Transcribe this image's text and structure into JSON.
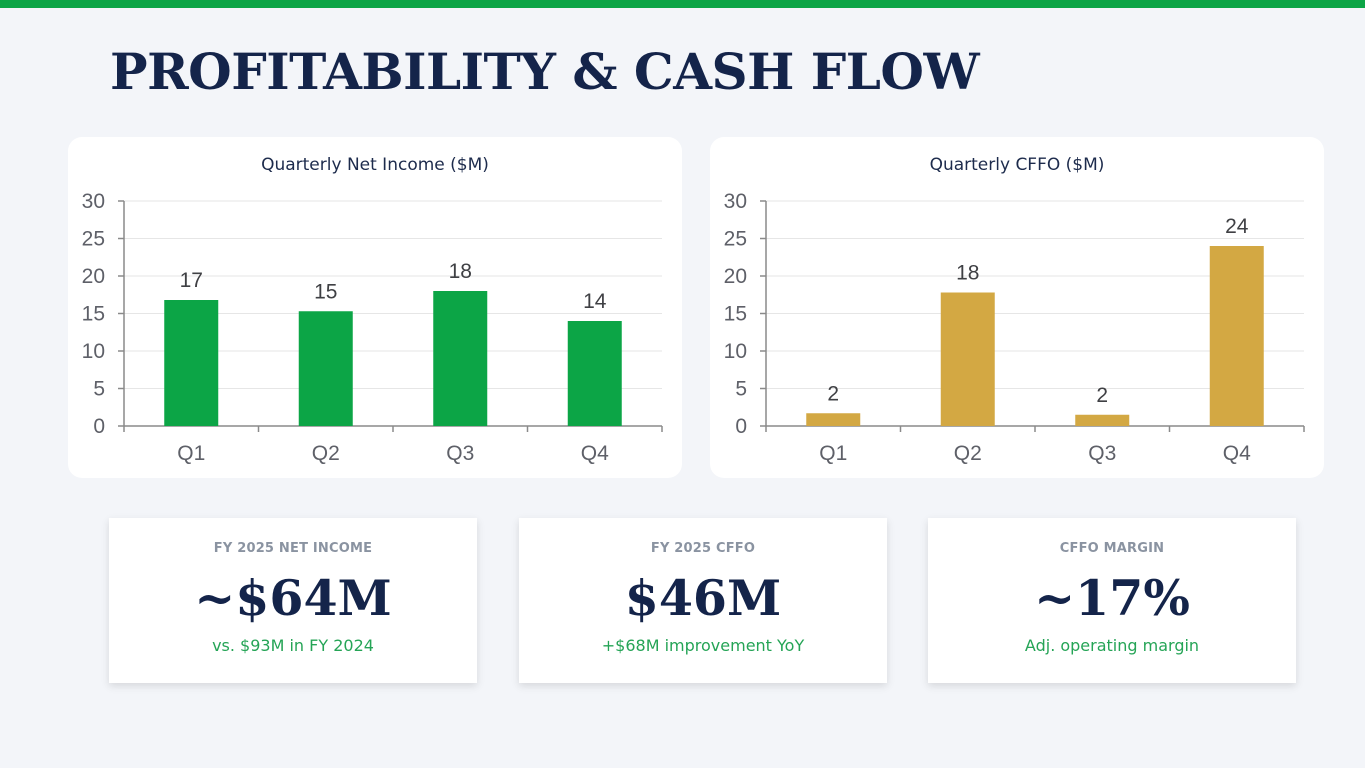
{
  "title": "PROFITABILITY & CASH FLOW",
  "colors": {
    "accent_green": "#0ca546",
    "accent_gold": "#d3a843",
    "navy": "#14244a"
  },
  "chart_data": [
    {
      "type": "bar",
      "title": "Quarterly Net Income ($M)",
      "categories": [
        "Q1",
        "Q2",
        "Q3",
        "Q4"
      ],
      "values": [
        17,
        15,
        18,
        14
      ],
      "bar_heights": [
        16.8,
        15.3,
        18.0,
        14.0
      ],
      "labels": [
        "17",
        "15",
        "18",
        "14"
      ],
      "ylim": [
        0,
        30
      ],
      "yticks": [
        0,
        5,
        10,
        15,
        20,
        25,
        30
      ],
      "grid": true,
      "color": "#0ca546"
    },
    {
      "type": "bar",
      "title": "Quarterly CFFO ($M)",
      "categories": [
        "Q1",
        "Q2",
        "Q3",
        "Q4"
      ],
      "values": [
        2,
        18,
        2,
        24
      ],
      "bar_heights": [
        1.7,
        17.8,
        1.5,
        24.0
      ],
      "labels": [
        "2",
        "18",
        "2",
        "24"
      ],
      "ylim": [
        0,
        30
      ],
      "yticks": [
        0,
        5,
        10,
        15,
        20,
        25,
        30
      ],
      "grid": true,
      "color": "#d3a843"
    }
  ],
  "kpis": [
    {
      "label": "FY 2025 NET INCOME",
      "value": "~$64M",
      "sub": "vs. $93M in FY 2024"
    },
    {
      "label": "FY 2025 CFFO",
      "value": "$46M",
      "sub": "+$68M improvement YoY"
    },
    {
      "label": "CFFO MARGIN",
      "value": "~17%",
      "sub": "Adj. operating margin"
    }
  ]
}
